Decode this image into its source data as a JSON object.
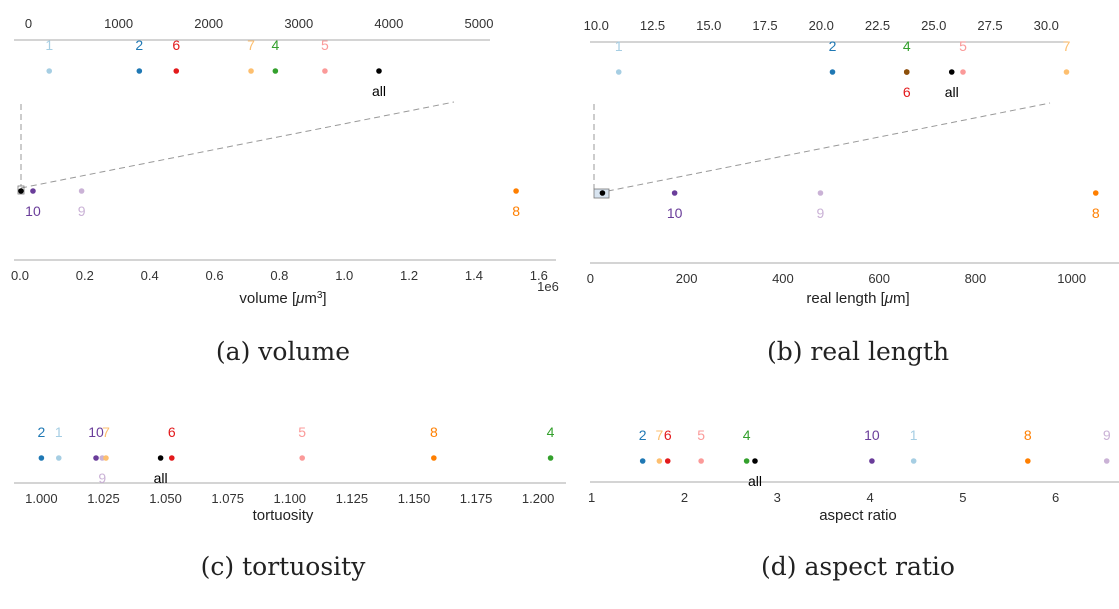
{
  "chart_data": [
    {
      "type": "scatter",
      "caption": "(a) volume",
      "xlabel": "volume [μm³]",
      "bottom_axis": {
        "ticks": [
          "0.0",
          "0.2",
          "0.4",
          "0.6",
          "0.8",
          "1.0",
          "1.2",
          "1.4",
          "1.6"
        ],
        "values": [
          0,
          0.2,
          0.4,
          0.6,
          0.8,
          1.0,
          1.2,
          1.4,
          1.6
        ],
        "multiplier": "1e6",
        "xlim": [
          0,
          1.65
        ]
      },
      "top_axis": {
        "ticks": [
          "0",
          "1000",
          "2000",
          "3000",
          "4000",
          "5000"
        ],
        "values": [
          0,
          1000,
          2000,
          3000,
          4000,
          5000
        ],
        "xlim": [
          -50,
          5100
        ]
      },
      "zoom_points": [
        {
          "label": "1",
          "x": 230,
          "color": "#a6cee3"
        },
        {
          "label": "2",
          "x": 1230,
          "color": "#1f78b4"
        },
        {
          "label": "6",
          "x": 1640,
          "color": "#e31a1c"
        },
        {
          "label": "7",
          "x": 2470,
          "color": "#fdbf6f"
        },
        {
          "label": "4",
          "x": 2740,
          "color": "#33a02c"
        },
        {
          "label": "5",
          "x": 3290,
          "color": "#fb9a99"
        },
        {
          "label": "all",
          "x": 3890,
          "color": "#000000",
          "below": true
        }
      ],
      "main_points": [
        {
          "label": "",
          "x": 0.003,
          "color": "#000000"
        },
        {
          "label": "10",
          "x": 0.04,
          "color": "#6a3d9a",
          "below": true
        },
        {
          "label": "9",
          "x": 0.19,
          "color": "#cab2d6",
          "below": true
        },
        {
          "label": "8",
          "x": 1.53,
          "color": "#ff7f00",
          "below": true
        }
      ]
    },
    {
      "type": "scatter",
      "caption": "(b) real length",
      "xlabel": "real length [μm]",
      "bottom_axis": {
        "ticks": [
          "0",
          "200",
          "400",
          "600",
          "800",
          "1000"
        ],
        "values": [
          0,
          200,
          400,
          600,
          800,
          1000
        ],
        "xlim": [
          -5,
          1090
        ]
      },
      "top_axis": {
        "ticks": [
          "10.0",
          "12.5",
          "15.0",
          "17.5",
          "20.0",
          "22.5",
          "25.0",
          "27.5",
          "30.0"
        ],
        "values": [
          10,
          12.5,
          15,
          17.5,
          20,
          22.5,
          25,
          27.5,
          30
        ],
        "xlim": [
          9.9,
          31.5
        ]
      },
      "zoom_points": [
        {
          "label": "1",
          "x": 11.0,
          "color": "#a6cee3"
        },
        {
          "label": "2",
          "x": 20.5,
          "color": "#1f78b4"
        },
        {
          "label": "4",
          "x": 23.8,
          "color": "#33a02c"
        },
        {
          "label": "6",
          "x": 23.8,
          "color": "#e31a1c",
          "below": true
        },
        {
          "label": "",
          "x": 23.8,
          "color": "#8c510a"
        },
        {
          "label": "all",
          "x": 25.8,
          "color": "#000000",
          "below": true
        },
        {
          "label": "5",
          "x": 26.3,
          "color": "#fb9a99"
        },
        {
          "label": "7",
          "x": 30.9,
          "color": "#fdbf6f"
        }
      ],
      "main_points": [
        {
          "label": "",
          "x": 25,
          "color": "#000000"
        },
        {
          "label": "10",
          "x": 175,
          "color": "#6a3d9a",
          "below": true
        },
        {
          "label": "9",
          "x": 478,
          "color": "#cab2d6",
          "below": true
        },
        {
          "label": "8",
          "x": 1050,
          "color": "#ff7f00",
          "below": true
        }
      ]
    },
    {
      "type": "scatter",
      "caption": "(c) tortuosity",
      "xlabel": "tortuosity",
      "bottom_axis": {
        "ticks": [
          "1.000",
          "1.025",
          "1.050",
          "1.075",
          "1.100",
          "1.125",
          "1.150",
          "1.175",
          "1.200"
        ],
        "values": [
          1.0,
          1.025,
          1.05,
          1.075,
          1.1,
          1.125,
          1.15,
          1.175,
          1.2
        ],
        "xlim": [
          0.993,
          1.21
        ]
      },
      "points": [
        {
          "label": "2",
          "x": 1.0,
          "color": "#1f78b4"
        },
        {
          "label": "1",
          "x": 1.007,
          "color": "#a6cee3"
        },
        {
          "label": "10",
          "x": 1.022,
          "color": "#6a3d9a"
        },
        {
          "label": "9",
          "x": 1.0245,
          "color": "#cab2d6",
          "below": true
        },
        {
          "label": "7",
          "x": 1.026,
          "color": "#fdbf6f"
        },
        {
          "label": "all",
          "x": 1.048,
          "color": "#000000",
          "below": true
        },
        {
          "label": "6",
          "x": 1.0525,
          "color": "#e31a1c"
        },
        {
          "label": "5",
          "x": 1.105,
          "color": "#fb9a99"
        },
        {
          "label": "8",
          "x": 1.158,
          "color": "#ff7f00"
        },
        {
          "label": "4",
          "x": 1.205,
          "color": "#33a02c"
        }
      ]
    },
    {
      "type": "scatter",
      "caption": "(d) aspect ratio",
      "xlabel": "aspect ratio",
      "bottom_axis": {
        "ticks": [
          "1",
          "2",
          "3",
          "4",
          "5",
          "6"
        ],
        "values": [
          1,
          2,
          3,
          4,
          5,
          6
        ],
        "xlim": [
          0.95,
          6.65
        ]
      },
      "points": [
        {
          "label": "2",
          "x": 1.55,
          "color": "#1f78b4"
        },
        {
          "label": "7",
          "x": 1.73,
          "color": "#fdbf6f"
        },
        {
          "label": "6",
          "x": 1.82,
          "color": "#e31a1c"
        },
        {
          "label": "5",
          "x": 2.18,
          "color": "#fb9a99"
        },
        {
          "label": "4",
          "x": 2.67,
          "color": "#33a02c"
        },
        {
          "label": "all",
          "x": 2.76,
          "color": "#000000",
          "below": true
        },
        {
          "label": "10",
          "x": 4.02,
          "color": "#6a3d9a"
        },
        {
          "label": "1",
          "x": 4.47,
          "color": "#a6cee3"
        },
        {
          "label": "8",
          "x": 5.7,
          "color": "#ff7f00"
        },
        {
          "label": "9",
          "x": 6.55,
          "color": "#cab2d6"
        }
      ]
    }
  ]
}
